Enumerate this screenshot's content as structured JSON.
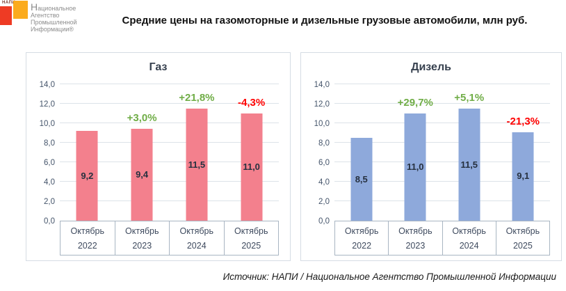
{
  "header": {
    "logo": {
      "acronym": "НАПИ",
      "lines": [
        "Национальное",
        "Агентство",
        "Промышленной",
        "Информации®"
      ],
      "red_square_color": "#ee3b24",
      "orange_square_color": "#fbab1d"
    },
    "title": "Средние цены на газомоторные и дизельные грузовые автомобили, млн руб."
  },
  "colors": {
    "positive": "#70ad47",
    "negative": "#ff0000",
    "gas_bar": "#f3808d",
    "diesel_bar": "#8ea9db",
    "panel_border": "#d5dce4",
    "axis_text": "#44546a"
  },
  "chart_data": [
    {
      "type": "bar",
      "title": "Газ",
      "bar_color": "#f3808d",
      "categories": [
        {
          "month": "Октябрь",
          "year": "2022"
        },
        {
          "month": "Октябрь",
          "year": "2023"
        },
        {
          "month": "Октябрь",
          "year": "2024"
        },
        {
          "month": "Октябрь",
          "year": "2025"
        }
      ],
      "values": [
        9.2,
        9.4,
        11.5,
        11.0
      ],
      "value_labels": [
        "9,2",
        "9,4",
        "11,5",
        "11,0"
      ],
      "pct_changes": [
        "",
        "+3,0%",
        "+21,8%",
        "-4,3%"
      ],
      "ylim": [
        0,
        14
      ],
      "ytick_step": 2,
      "ytick_labels": [
        "0,0",
        "2,0",
        "4,0",
        "6,0",
        "8,0",
        "10,0",
        "12,0",
        "14,0"
      ],
      "grid": true,
      "legend": "none"
    },
    {
      "type": "bar",
      "title": "Дизель",
      "bar_color": "#8ea9db",
      "categories": [
        {
          "month": "Октябрь",
          "year": "2022"
        },
        {
          "month": "Октябрь",
          "year": "2023"
        },
        {
          "month": "Октябрь",
          "year": "2024"
        },
        {
          "month": "Октябрь",
          "year": "2025"
        }
      ],
      "values": [
        8.5,
        11.0,
        11.5,
        9.1
      ],
      "value_labels": [
        "8,5",
        "11,0",
        "11,5",
        "9,1"
      ],
      "pct_changes": [
        "",
        "+29,7%",
        "+5,1%",
        "-21,3%"
      ],
      "ylim": [
        0,
        14
      ],
      "ytick_step": 2,
      "ytick_labels": [
        "0,0",
        "2,0",
        "4,0",
        "6,0",
        "8,0",
        "10,0",
        "12,0",
        "14,0"
      ],
      "grid": true,
      "legend": "none"
    }
  ],
  "footer": {
    "source": "Источник: НАПИ / Национальное Агентство Промышленной Информации"
  }
}
